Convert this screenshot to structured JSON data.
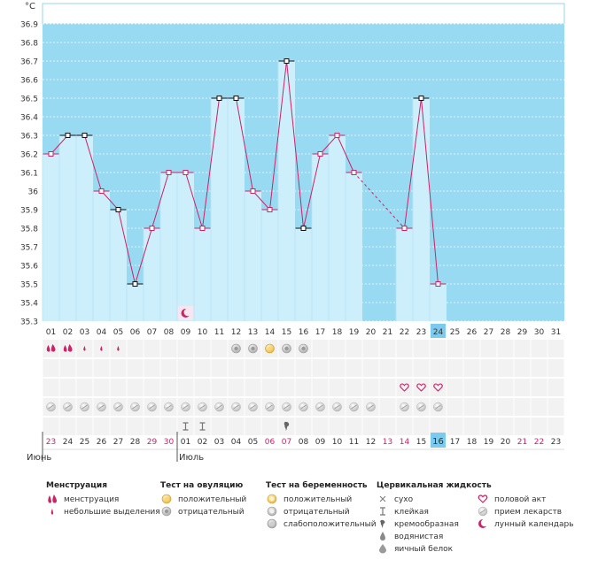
{
  "chart_data": {
    "type": "line",
    "unit_label": "°C",
    "y_ticks": [
      "36.9",
      "36.8",
      "36.7",
      "36.6",
      "36.5",
      "36.4",
      "36.3",
      "36.2",
      "36.1",
      "36",
      "35.9",
      "35.8",
      "35.7",
      "35.6",
      "35.5",
      "35.4",
      "35.3"
    ],
    "ylim": [
      35.3,
      37.0
    ],
    "cycle_days": [
      "01",
      "02",
      "03",
      "04",
      "05",
      "06",
      "07",
      "08",
      "09",
      "10",
      "11",
      "12",
      "13",
      "14",
      "15",
      "16",
      "17",
      "18",
      "19",
      "20",
      "21",
      "22",
      "23",
      "24",
      "25",
      "26",
      "27",
      "28",
      "29",
      "30",
      "31"
    ],
    "current_day_index": 23,
    "temperature": [
      36.2,
      36.3,
      36.3,
      36.0,
      35.9,
      35.5,
      35.8,
      36.1,
      36.1,
      35.8,
      36.5,
      36.5,
      36.0,
      35.9,
      36.7,
      35.8,
      36.2,
      36.3,
      36.1,
      null,
      null,
      35.8,
      36.5,
      35.5
    ],
    "black_marker_days": [
      1,
      2,
      4,
      5,
      10,
      11,
      14,
      15,
      22
    ],
    "dashed_segment": [
      18,
      21
    ],
    "dates": [
      "23",
      "24",
      "25",
      "26",
      "27",
      "28",
      "29",
      "30",
      "01",
      "02",
      "03",
      "04",
      "05",
      "06",
      "07",
      "08",
      "09",
      "10",
      "11",
      "12",
      "13",
      "14",
      "15",
      "16",
      "17",
      "18",
      "19",
      "20",
      "21",
      "22",
      "23"
    ],
    "red_date_indices": [
      0,
      6,
      7,
      13,
      14,
      20,
      21,
      28,
      29
    ],
    "today_date_index": 23,
    "month_labels": [
      {
        "text": "Июнь",
        "start": 0
      },
      {
        "text": "Июль",
        "start": 8
      }
    ],
    "menstruation": {
      "heavy_days": [
        0,
        1
      ],
      "light_days": [
        2,
        3,
        4
      ]
    },
    "moon_day": 8,
    "ovulation_tests": {
      "positive_days": [
        13
      ],
      "negative_days": [
        11,
        12,
        14,
        15
      ]
    },
    "intercourse_days": [
      21,
      22,
      23
    ],
    "medication_days": [
      0,
      1,
      2,
      3,
      4,
      5,
      6,
      7,
      8,
      9,
      10,
      11,
      12,
      13,
      14,
      15,
      16,
      17,
      18,
      19,
      21,
      22,
      23
    ],
    "cervical_fluid": {
      "sticky_days": [
        8,
        9
      ],
      "creamy_days": [
        14
      ]
    }
  },
  "colors": {
    "sky": "#99daf3",
    "bar": "#cdeefb",
    "line": "#cc2266",
    "today": "#7ccbee",
    "red_text": "#cc2266",
    "grid_row": "#f2f2f2"
  },
  "legend": {
    "menstruation": {
      "title": "Менструация",
      "items": [
        {
          "icon": "drop-double-icon",
          "label": "менструация"
        },
        {
          "icon": "drop-small-icon",
          "label": "небольшие выделения"
        }
      ]
    },
    "ovulation": {
      "title": "Тест на овуляцию",
      "items": [
        {
          "icon": "test-positive-icon",
          "label": "положительный"
        },
        {
          "icon": "test-negative-icon",
          "label": "отрицательный"
        }
      ]
    },
    "pregnancy": {
      "title": "Тест на беременность",
      "items": [
        {
          "icon": "preg-positive-icon",
          "label": "положительный"
        },
        {
          "icon": "preg-negative-icon",
          "label": "отрицательный"
        },
        {
          "icon": "preg-weak-icon",
          "label": "слабоположительный"
        }
      ]
    },
    "cervical": {
      "title": "Цервикальная жидкость",
      "items": [
        {
          "icon": "dry-icon",
          "label": "сухо"
        },
        {
          "icon": "sticky-icon",
          "label": "клейкая"
        },
        {
          "icon": "creamy-icon",
          "label": "кремообразная"
        },
        {
          "icon": "watery-icon",
          "label": "водянистая"
        },
        {
          "icon": "eggwhite-icon",
          "label": "яичный белок"
        }
      ]
    },
    "other": {
      "items": [
        {
          "icon": "heart-icon",
          "label": "половой акт"
        },
        {
          "icon": "pill-icon",
          "label": "прием лекарств"
        },
        {
          "icon": "moon-icon",
          "label": "лунный календарь"
        }
      ]
    }
  }
}
